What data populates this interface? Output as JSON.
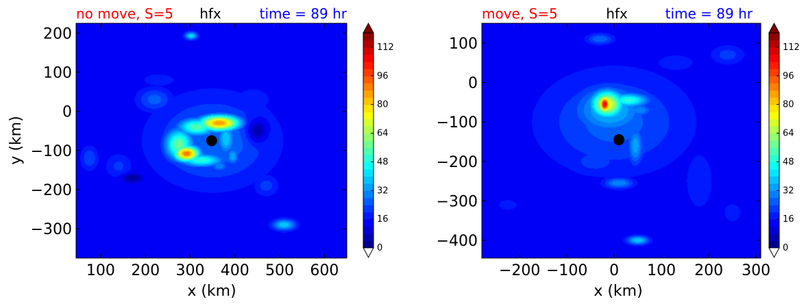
{
  "chart_data": [
    {
      "type": "heatmap",
      "variable": "hfx",
      "title_left": "no move, S=5",
      "title_center": "hfx",
      "title_right": "time = 89 hr",
      "xlabel": "x (km)",
      "ylabel": "y (km)",
      "xlim": [
        45,
        650
      ],
      "ylim": [
        -375,
        225
      ],
      "xticks": [
        100,
        200,
        300,
        400,
        500,
        600
      ],
      "yticks": [
        200,
        100,
        0,
        -100,
        -200,
        -300
      ],
      "center_marker": [
        348,
        -75
      ],
      "colorbar": {
        "min": 0,
        "max": 120,
        "ticks": [
          0,
          16,
          32,
          48,
          64,
          80,
          96,
          112
        ],
        "extend": "both"
      },
      "features": [
        {
          "x": 350,
          "y": -75,
          "value": 28,
          "sx": 95,
          "sy": 80
        },
        {
          "x": 350,
          "y": -75,
          "value": 14,
          "sx": 190,
          "sy": 150
        },
        {
          "x": 365,
          "y": -30,
          "value": 88,
          "sx": 32,
          "sy": 14
        },
        {
          "x": 315,
          "y": -40,
          "value": 55,
          "sx": 30,
          "sy": 16
        },
        {
          "x": 292,
          "y": -108,
          "value": 92,
          "sx": 20,
          "sy": 14
        },
        {
          "x": 275,
          "y": -85,
          "value": 58,
          "sx": 22,
          "sy": 28
        },
        {
          "x": 325,
          "y": -125,
          "value": 50,
          "sx": 34,
          "sy": 12
        },
        {
          "x": 380,
          "y": -70,
          "value": 40,
          "sx": 14,
          "sy": 30
        },
        {
          "x": 395,
          "y": -115,
          "value": 36,
          "sx": 10,
          "sy": 16
        },
        {
          "x": 365,
          "y": -140,
          "value": 32,
          "sx": 14,
          "sy": 10
        },
        {
          "x": 302,
          "y": 193,
          "value": 42,
          "sx": 10,
          "sy": 7
        },
        {
          "x": 510,
          "y": -290,
          "value": 40,
          "sx": 18,
          "sy": 10
        },
        {
          "x": 220,
          "y": 30,
          "value": 26,
          "sx": 28,
          "sy": 22
        },
        {
          "x": 440,
          "y": 30,
          "value": 20,
          "sx": 30,
          "sy": 22
        },
        {
          "x": 140,
          "y": -140,
          "value": 21,
          "sx": 22,
          "sy": 24
        },
        {
          "x": 470,
          "y": -190,
          "value": 22,
          "sx": 20,
          "sy": 20
        },
        {
          "x": 230,
          "y": 80,
          "value": 18,
          "sx": 36,
          "sy": 16
        },
        {
          "x": 75,
          "y": -120,
          "value": 24,
          "sx": 14,
          "sy": 22
        },
        {
          "x": 170,
          "y": -170,
          "value": 2,
          "sx": 14,
          "sy": 7
        },
        {
          "x": 450,
          "y": -50,
          "value": 3,
          "sx": 15,
          "sy": 20
        }
      ]
    },
    {
      "type": "heatmap",
      "variable": "hfx",
      "title_left": "move, S=5",
      "title_center": "hfx",
      "title_right": "time = 89 hr",
      "xlabel": "x (km)",
      "ylabel": "",
      "xlim": [
        -280,
        310
      ],
      "ylim": [
        -445,
        150
      ],
      "xticks": [
        -200,
        -100,
        0,
        100,
        200,
        300
      ],
      "yticks": [
        100,
        0,
        -100,
        -200,
        -300,
        -400
      ],
      "center_marker": [
        10,
        -145
      ],
      "colorbar": {
        "min": 0,
        "max": 120,
        "ticks": [
          0,
          16,
          32,
          48,
          64,
          80,
          96,
          112
        ],
        "extend": "both"
      },
      "features": [
        {
          "x": 0,
          "y": -100,
          "value": 26,
          "sx": 110,
          "sy": 90
        },
        {
          "x": -10,
          "y": -70,
          "value": 38,
          "sx": 55,
          "sy": 45
        },
        {
          "x": -15,
          "y": -55,
          "value": 75,
          "sx": 24,
          "sy": 24
        },
        {
          "x": -20,
          "y": -55,
          "value": 108,
          "sx": 9,
          "sy": 16
        },
        {
          "x": 30,
          "y": -45,
          "value": 50,
          "sx": 30,
          "sy": 13
        },
        {
          "x": 55,
          "y": -70,
          "value": 32,
          "sx": 18,
          "sy": 12
        },
        {
          "x": 45,
          "y": -160,
          "value": 35,
          "sx": 12,
          "sy": 35
        },
        {
          "x": 10,
          "y": -255,
          "value": 32,
          "sx": 22,
          "sy": 10
        },
        {
          "x": 50,
          "y": -400,
          "value": 40,
          "sx": 16,
          "sy": 8
        },
        {
          "x": -40,
          "y": -200,
          "value": 22,
          "sx": 45,
          "sy": 28
        },
        {
          "x": -30,
          "y": 110,
          "value": 28,
          "sx": 20,
          "sy": 10
        },
        {
          "x": 240,
          "y": 70,
          "value": 22,
          "sx": 26,
          "sy": 18
        },
        {
          "x": 130,
          "y": 50,
          "value": 18,
          "sx": 40,
          "sy": 20
        },
        {
          "x": 130,
          "y": -110,
          "value": 18,
          "sx": 32,
          "sy": 22
        },
        {
          "x": -225,
          "y": -310,
          "value": 17,
          "sx": 28,
          "sy": 18
        },
        {
          "x": 180,
          "y": -250,
          "value": 20,
          "sx": 22,
          "sy": 55
        },
        {
          "x": 250,
          "y": -330,
          "value": 18,
          "sx": 18,
          "sy": 24
        },
        {
          "x": -160,
          "y": -170,
          "value": 16,
          "sx": 28,
          "sy": 22
        }
      ]
    }
  ]
}
